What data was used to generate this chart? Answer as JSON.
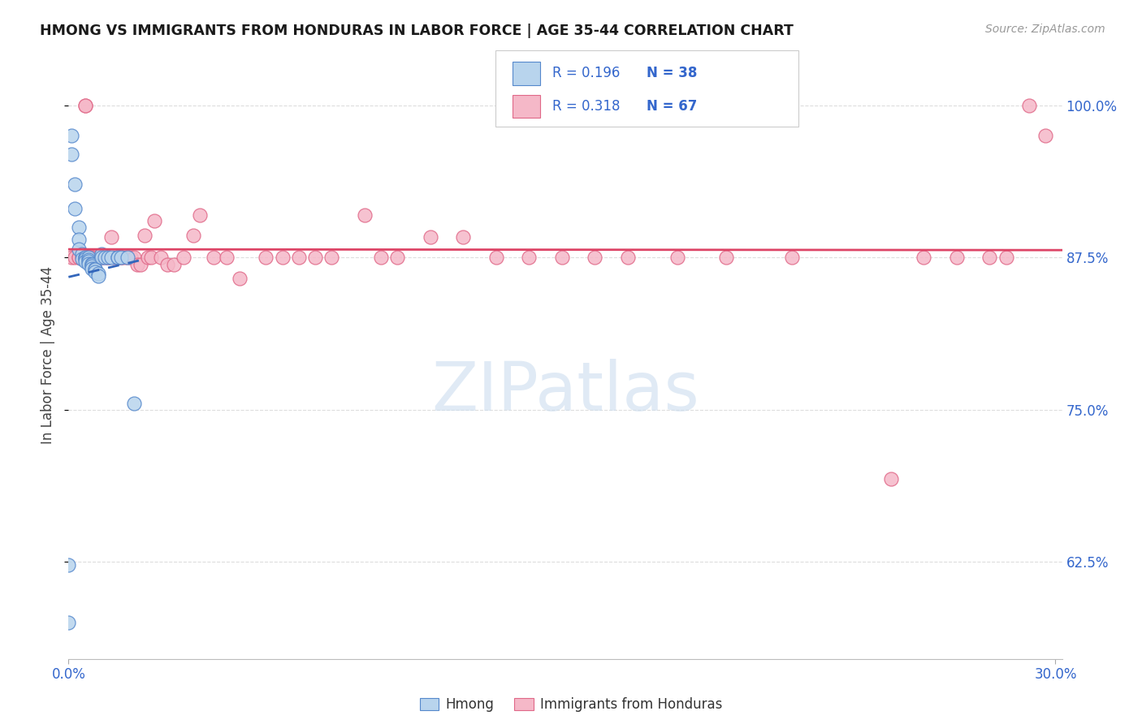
{
  "title": "HMONG VS IMMIGRANTS FROM HONDURAS IN LABOR FORCE | AGE 35-44 CORRELATION CHART",
  "source": "Source: ZipAtlas.com",
  "ylabel": "In Labor Force | Age 35-44",
  "xmin": 0.0,
  "xmax": 0.302,
  "ymin": 0.545,
  "ymax": 1.045,
  "yticks": [
    0.625,
    0.75,
    0.875,
    1.0
  ],
  "ytick_labels": [
    "62.5%",
    "75.0%",
    "87.5%",
    "100.0%"
  ],
  "xtick_labels": [
    "0.0%",
    "30.0%"
  ],
  "hmong_fill": "#b8d4ed",
  "hmong_edge": "#5588cc",
  "honduras_fill": "#f5b8c8",
  "honduras_edge": "#e06888",
  "trend_hmong_color": "#3366bb",
  "trend_honduras_color": "#dd4466",
  "R_hmong": 0.196,
  "N_hmong": 38,
  "R_honduras": 0.318,
  "N_honduras": 67,
  "legend_label_hmong": "Hmong",
  "legend_label_honduras": "Immigrants from Honduras",
  "watermark_text": "ZIPatlas",
  "axis_label_color": "#3366cc",
  "grid_color": "#dddddd",
  "background_color": "#ffffff",
  "hmong_x": [
    0.0,
    0.001,
    0.001,
    0.002,
    0.002,
    0.003,
    0.003,
    0.003,
    0.004,
    0.004,
    0.005,
    0.005,
    0.005,
    0.005,
    0.006,
    0.006,
    0.006,
    0.006,
    0.007,
    0.007,
    0.007,
    0.007,
    0.008,
    0.008,
    0.008,
    0.009,
    0.009,
    0.01,
    0.01,
    0.011,
    0.012,
    0.013,
    0.015,
    0.015,
    0.016,
    0.018,
    0.02,
    0.0
  ],
  "hmong_y": [
    0.575,
    0.975,
    0.96,
    0.935,
    0.915,
    0.9,
    0.89,
    0.882,
    0.878,
    0.874,
    0.875,
    0.875,
    0.874,
    0.872,
    0.875,
    0.873,
    0.872,
    0.87,
    0.87,
    0.869,
    0.868,
    0.866,
    0.866,
    0.865,
    0.863,
    0.862,
    0.86,
    0.878,
    0.875,
    0.875,
    0.875,
    0.875,
    0.875,
    0.875,
    0.875,
    0.875,
    0.755,
    0.622
  ],
  "honduras_x": [
    0.001,
    0.002,
    0.003,
    0.003,
    0.004,
    0.005,
    0.005,
    0.006,
    0.006,
    0.007,
    0.007,
    0.008,
    0.009,
    0.009,
    0.01,
    0.011,
    0.012,
    0.012,
    0.013,
    0.014,
    0.015,
    0.016,
    0.016,
    0.017,
    0.018,
    0.019,
    0.02,
    0.021,
    0.022,
    0.023,
    0.024,
    0.025,
    0.026,
    0.028,
    0.03,
    0.032,
    0.035,
    0.038,
    0.04,
    0.044,
    0.048,
    0.052,
    0.06,
    0.065,
    0.07,
    0.075,
    0.08,
    0.09,
    0.095,
    0.1,
    0.11,
    0.12,
    0.13,
    0.14,
    0.15,
    0.16,
    0.17,
    0.185,
    0.2,
    0.22,
    0.25,
    0.26,
    0.27,
    0.28,
    0.285,
    0.292,
    0.297
  ],
  "honduras_y": [
    0.875,
    0.875,
    0.875,
    0.875,
    0.875,
    1.0,
    1.0,
    0.875,
    0.875,
    0.875,
    0.875,
    0.875,
    0.875,
    0.875,
    0.875,
    0.875,
    0.875,
    0.875,
    0.892,
    0.875,
    0.875,
    0.875,
    0.875,
    0.875,
    0.875,
    0.875,
    0.875,
    0.869,
    0.869,
    0.893,
    0.875,
    0.875,
    0.905,
    0.875,
    0.869,
    0.869,
    0.875,
    0.893,
    0.91,
    0.875,
    0.875,
    0.858,
    0.875,
    0.875,
    0.875,
    0.875,
    0.875,
    0.91,
    0.875,
    0.875,
    0.892,
    0.892,
    0.875,
    0.875,
    0.875,
    0.875,
    0.875,
    0.875,
    0.875,
    0.875,
    0.693,
    0.875,
    0.875,
    0.875,
    0.875,
    1.0,
    0.975
  ]
}
